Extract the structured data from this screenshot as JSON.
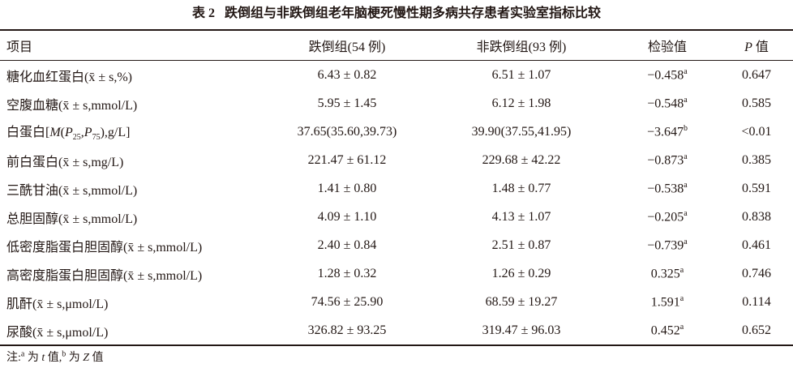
{
  "title": {
    "label": "表 2",
    "text": "跌倒组与非跌倒组老年脑梗死慢性期多病共存患者实验室指标比较"
  },
  "table": {
    "header": [
      "项目",
      "跌倒组(54 例)",
      "非跌倒组(93 例)",
      "检验值",
      [
        {
          "text": "P",
          "italic": true
        },
        {
          "text": " 值"
        }
      ]
    ],
    "rows": [
      [
        "糖化血红蛋白(x̄ ± s,%)",
        "6.43 ± 0.82",
        "6.51 ± 1.07",
        [
          {
            "text": "−0.458"
          },
          {
            "text": "a",
            "sup": true
          }
        ],
        "0.647"
      ],
      [
        "空腹血糖(x̄ ± s,mmol/L)",
        "5.95 ± 1.45",
        "6.12 ± 1.98",
        [
          {
            "text": "−0.548"
          },
          {
            "text": "a",
            "sup": true
          }
        ],
        "0.585"
      ],
      [
        [
          {
            "text": "白蛋白["
          },
          {
            "text": "M",
            "italic": true
          },
          {
            "text": "("
          },
          {
            "text": "P",
            "italic": true
          },
          {
            "text": "25",
            "sub": true
          },
          {
            "text": ","
          },
          {
            "text": "P",
            "italic": true
          },
          {
            "text": "75",
            "sub": true
          },
          {
            "text": "),g/L]"
          }
        ],
        "37.65(35.60,39.73)",
        "39.90(37.55,41.95)",
        [
          {
            "text": "−3.647"
          },
          {
            "text": "b",
            "sup": true
          }
        ],
        "<0.01"
      ],
      [
        "前白蛋白(x̄ ± s,mg/L)",
        "221.47 ± 61.12",
        "229.68 ± 42.22",
        [
          {
            "text": "−0.873"
          },
          {
            "text": "a",
            "sup": true
          }
        ],
        "0.385"
      ],
      [
        "三酰甘油(x̄ ± s,mmol/L)",
        "1.41 ± 0.80",
        "1.48 ± 0.77",
        [
          {
            "text": "−0.538"
          },
          {
            "text": "a",
            "sup": true
          }
        ],
        "0.591"
      ],
      [
        "总胆固醇(x̄ ± s,mmol/L)",
        "4.09 ± 1.10",
        "4.13 ± 1.07",
        [
          {
            "text": "−0.205"
          },
          {
            "text": "a",
            "sup": true
          }
        ],
        "0.838"
      ],
      [
        "低密度脂蛋白胆固醇(x̄ ± s,mmol/L)",
        "2.40 ± 0.84",
        "2.51 ± 0.87",
        [
          {
            "text": "−0.739"
          },
          {
            "text": "a",
            "sup": true
          }
        ],
        "0.461"
      ],
      [
        "高密度脂蛋白胆固醇(x̄ ± s,mmol/L)",
        "1.28 ± 0.32",
        "1.26 ± 0.29",
        [
          {
            "text": "0.325"
          },
          {
            "text": "a",
            "sup": true
          }
        ],
        "0.746"
      ],
      [
        "肌酐(x̄ ± s,μmol/L)",
        "74.56 ± 25.90",
        "68.59 ± 19.27",
        [
          {
            "text": "1.591"
          },
          {
            "text": "a",
            "sup": true
          }
        ],
        "0.114"
      ],
      [
        "尿酸(x̄ ± s,μmol/L)",
        "326.82 ± 93.25",
        "319.47 ± 96.03",
        [
          {
            "text": "0.452"
          },
          {
            "text": "a",
            "sup": true
          }
        ],
        "0.652"
      ]
    ]
  },
  "note": [
    {
      "text": "注:"
    },
    {
      "text": "a",
      "sup": true
    },
    {
      "text": " 为 "
    },
    {
      "text": "t",
      "italic": true
    },
    {
      "text": " 值,"
    },
    {
      "text": "b",
      "sup": true
    },
    {
      "text": " 为 "
    },
    {
      "text": "Z",
      "italic": true
    },
    {
      "text": " 值"
    }
  ]
}
